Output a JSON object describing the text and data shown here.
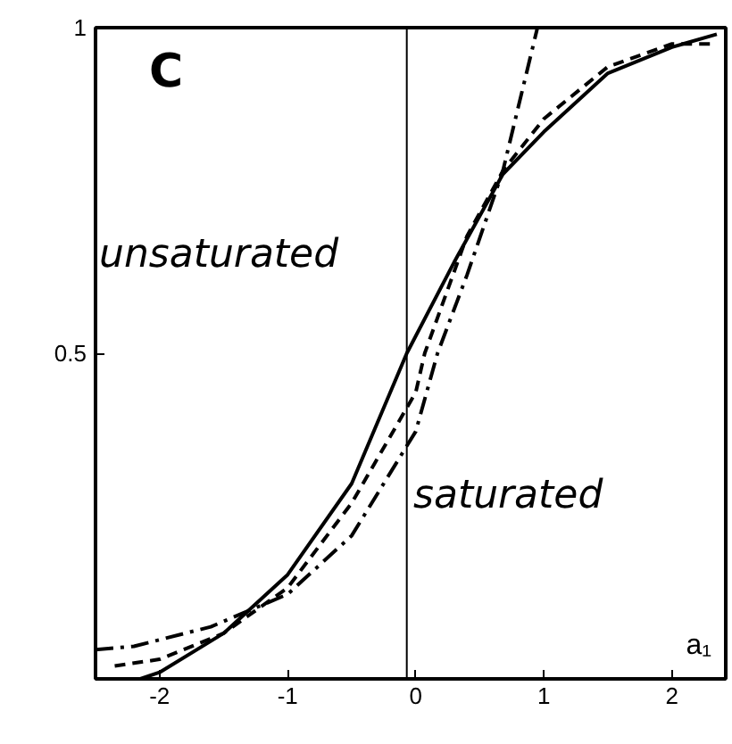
{
  "chart_data": {
    "type": "line",
    "xlabel": "a₁",
    "xlim": [
      -2.5,
      2.42
    ],
    "ylim": [
      0,
      1
    ],
    "xticks": [
      -2,
      -1,
      0,
      1,
      2
    ],
    "yticks": [
      0.5,
      1
    ],
    "grid": false,
    "marker": "none",
    "series": [
      {
        "color": "#000000",
        "line_style": "solid",
        "x": [
          -2.15,
          -2,
          -1.5,
          -1,
          -0.5,
          -0.07,
          0.3,
          0.68,
          1,
          1.5,
          2,
          2.35
        ],
        "values": [
          0.0,
          0.01,
          0.07,
          0.16,
          0.3,
          0.5,
          0.64,
          0.775,
          0.84,
          0.93,
          0.97,
          0.99
        ]
      },
      {
        "color": "#000000",
        "line_style": "dashed",
        "x": [
          -2.35,
          -2,
          -1.5,
          -1,
          -0.5,
          0,
          0.07,
          0.4,
          0.68,
          1,
          1.5,
          2,
          2.35
        ],
        "values": [
          0.02,
          0.03,
          0.07,
          0.14,
          0.27,
          0.44,
          0.5,
          0.68,
          0.78,
          0.86,
          0.94,
          0.975,
          0.975
        ]
      },
      {
        "color": "#000000",
        "line_style": "dashdot",
        "x": [
          -2.5,
          -2.2,
          -1.6,
          -1,
          -0.5,
          0,
          0.17,
          0.4,
          0.68,
          0.95
        ],
        "values": [
          0.045,
          0.05,
          0.08,
          0.13,
          0.22,
          0.38,
          0.5,
          0.62,
          0.78,
          1.0
        ]
      }
    ],
    "ref_lines": [
      {
        "axis": "x",
        "value": -0.07,
        "color": "#000000"
      }
    ],
    "annotations": [
      "C",
      "unsaturated",
      "saturated"
    ]
  }
}
